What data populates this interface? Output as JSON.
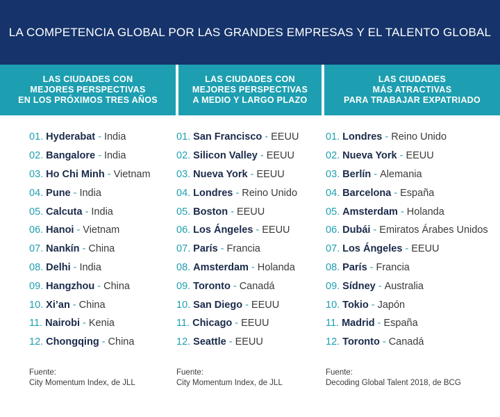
{
  "title": "LA COMPETENCIA GLOBAL POR LAS GRANDES EMPRESAS Y EL TALENTO GLOBAL",
  "columns": [
    {
      "header": [
        "LAS CIUDADES CON",
        "MEJORES PERSPECTIVAS",
        "EN LOS PRÓXIMOS TRES AÑOS"
      ],
      "items": [
        {
          "rank": "01.",
          "city": "Hyderabat",
          "country": "India"
        },
        {
          "rank": "02.",
          "city": "Bangalore",
          "country": "India"
        },
        {
          "rank": "03.",
          "city": "Ho Chi Minh",
          "country": "Vietnam"
        },
        {
          "rank": "04.",
          "city": "Pune",
          "country": "India"
        },
        {
          "rank": "05.",
          "city": "Calcuta",
          "country": "India"
        },
        {
          "rank": "06.",
          "city": "Hanoi",
          "country": "Vietnam"
        },
        {
          "rank": "07.",
          "city": "Nankín",
          "country": "China"
        },
        {
          "rank": "08.",
          "city": "Delhi",
          "country": "India"
        },
        {
          "rank": "09.",
          "city": "Hangzhou",
          "country": "China"
        },
        {
          "rank": "10.",
          "city": "Xi’an",
          "country": "China"
        },
        {
          "rank": "11.",
          "city": "Nairobi",
          "country": "Kenia"
        },
        {
          "rank": "12.",
          "city": "Chongqing",
          "country": "China"
        }
      ],
      "source_label": "Fuente:",
      "source": "City Momentum Index, de JLL"
    },
    {
      "header": [
        "LAS CIUDADES CON",
        "MEJORES PERSPECTIVAS",
        "A MEDIO Y LARGO PLAZO"
      ],
      "items": [
        {
          "rank": "01.",
          "city": "San Francisco",
          "country": "EEUU"
        },
        {
          "rank": "02.",
          "city": "Silicon Valley",
          "country": "EEUU"
        },
        {
          "rank": "03.",
          "city": "Nueva York",
          "country": "EEUU"
        },
        {
          "rank": "04.",
          "city": "Londres",
          "country": "Reino Unido"
        },
        {
          "rank": "05.",
          "city": "Boston",
          "country": "EEUU"
        },
        {
          "rank": "06.",
          "city": "Los Ángeles",
          "country": "EEUU"
        },
        {
          "rank": "07.",
          "city": "París",
          "country": "Francia"
        },
        {
          "rank": "08.",
          "city": "Amsterdam",
          "country": "Holanda"
        },
        {
          "rank": "09.",
          "city": "Toronto",
          "country": "Canadá"
        },
        {
          "rank": "10.",
          "city": "San Diego",
          "country": "EEUU"
        },
        {
          "rank": "11.",
          "city": "Chicago",
          "country": "EEUU"
        },
        {
          "rank": "12.",
          "city": "Seattle",
          "country": "EEUU"
        }
      ],
      "source_label": "Fuente:",
      "source": "City Momentum Index, de JLL"
    },
    {
      "header": [
        "LAS CIUDADES",
        "MÁS ATRACTIVAS",
        "PARA TRABAJAR EXPATRIADO"
      ],
      "items": [
        {
          "rank": "01.",
          "city": "Londres",
          "country": "Reino Unido"
        },
        {
          "rank": "02.",
          "city": "Nueva York",
          "country": "EEUU"
        },
        {
          "rank": "03.",
          "city": "Berlín",
          "country": "Alemania"
        },
        {
          "rank": "04.",
          "city": "Barcelona",
          "country": "España"
        },
        {
          "rank": "05.",
          "city": "Amsterdam",
          "country": "Holanda"
        },
        {
          "rank": "06.",
          "city": "Dubái",
          "country": "Emiratos Árabes Unidos"
        },
        {
          "rank": "07.",
          "city": "Los Ángeles",
          "country": "EEUU"
        },
        {
          "rank": "08.",
          "city": "París",
          "country": "Francia"
        },
        {
          "rank": "09.",
          "city": "Sídney",
          "country": "Australia"
        },
        {
          "rank": "10.",
          "city": "Tokio",
          "country": "Japón"
        },
        {
          "rank": "11.",
          "city": "Madrid",
          "country": "España"
        },
        {
          "rank": "12.",
          "city": "Toronto",
          "country": "Canadá"
        }
      ],
      "source_label": "Fuente:",
      "source": "Decoding Global Talent 2018, de BCG"
    }
  ],
  "separator": "-",
  "colors": {
    "title_bg": "#16346b",
    "header_bg": "#1e9fb1",
    "accent": "#1e9fb1",
    "city_text": "#1a2a4a"
  }
}
